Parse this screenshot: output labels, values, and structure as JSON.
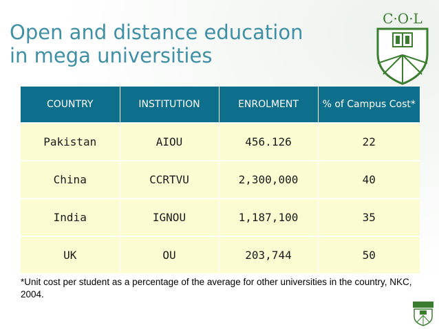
{
  "title": {
    "line1": "Open and distance education",
    "line2": "in mega universities"
  },
  "logo": {
    "text": "C·O·L",
    "icon": "col-shield-logo-icon"
  },
  "table": {
    "headers": [
      "COUNTRY",
      "INSTITUTION",
      "ENROLMENT",
      "% of Campus Cost*"
    ],
    "rows": [
      [
        "Pakistan",
        "AIOU",
        "456.126",
        "22"
      ],
      [
        "China",
        "CCRTVU",
        "2,300,000",
        "40"
      ],
      [
        "India",
        "IGNOU",
        "1,187,100",
        "35"
      ],
      [
        "UK",
        "OU",
        "203,744",
        "50"
      ]
    ]
  },
  "footnote": "*Unit cost per student as a percentage of the average for other universities in the country, NKC, 2004.",
  "colors": {
    "title": "#3f8fa6",
    "header_bg": "#0e6f8c",
    "cell_bg": "#fcfcd2",
    "logo_green": "#3a7d2e"
  }
}
